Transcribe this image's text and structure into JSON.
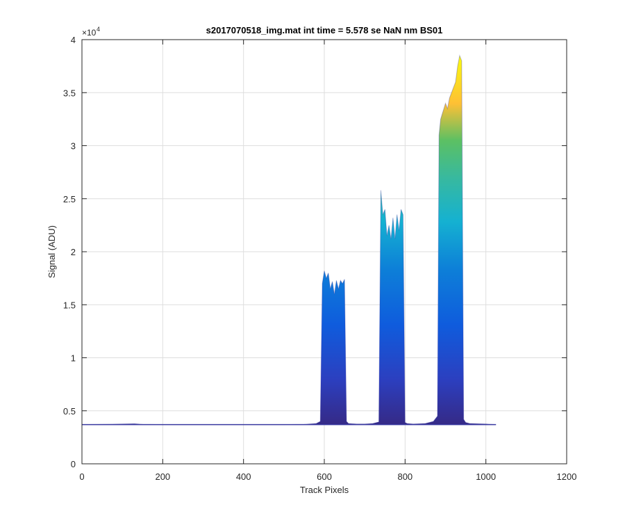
{
  "chart_data": {
    "type": "area",
    "title": "s2017070518_img.mat int time = 5.578 se  NaN nm BS01",
    "xlabel": "Track Pixels",
    "ylabel": "Signal (ADU)",
    "xlim": [
      0,
      1200
    ],
    "ylim": [
      0,
      40000
    ],
    "x_ticks": [
      0,
      200,
      400,
      600,
      800,
      1000,
      1200
    ],
    "x_tick_labels": [
      "0",
      "200",
      "400",
      "600",
      "800",
      "1000",
      "1200"
    ],
    "y_ticks": [
      0,
      5000,
      10000,
      15000,
      20000,
      25000,
      30000,
      35000,
      40000
    ],
    "y_tick_labels": [
      "0",
      "0.5",
      "1",
      "1.5",
      "2",
      "2.5",
      "3",
      "3.5",
      "4"
    ],
    "y_exponent_base": "×10",
    "y_exponent_power": "4",
    "grid": true,
    "colormap": "parula",
    "colors": {
      "low": "#352a87",
      "mid_blue": "#0f5cdd",
      "cyan": "#15b1d1",
      "green": "#5cc063",
      "yellow": "#f9fb0e",
      "orange": "#fec035",
      "baseline": "#3a3aa0",
      "grid": "#dedede",
      "axes": "#262626"
    },
    "series": [
      {
        "x": [
          0,
          50,
          100,
          130,
          150,
          200,
          300,
          400,
          500,
          550,
          580,
          590,
          595,
          600,
          605,
          610,
          615,
          620,
          625,
          630,
          635,
          640,
          645,
          650,
          655,
          660,
          680,
          700,
          720,
          735,
          740,
          745,
          750,
          755,
          760,
          765,
          770,
          775,
          780,
          785,
          790,
          795,
          800,
          805,
          820,
          850,
          870,
          880,
          884,
          888,
          892,
          896,
          900,
          905,
          910,
          915,
          920,
          925,
          930,
          935,
          940,
          945,
          950,
          960,
          1000,
          1025
        ],
        "y": [
          3700,
          3720,
          3750,
          3780,
          3720,
          3700,
          3700,
          3700,
          3700,
          3720,
          3800,
          4000,
          17000,
          18200,
          17500,
          18000,
          16500,
          17200,
          16000,
          17300,
          16500,
          17300,
          17000,
          17400,
          4000,
          3800,
          3750,
          3750,
          3800,
          3950,
          25800,
          23500,
          24000,
          21500,
          22500,
          21200,
          23200,
          21200,
          23500,
          22000,
          24000,
          23500,
          3900,
          3800,
          3750,
          3800,
          4000,
          4500,
          31000,
          32500,
          33000,
          33500,
          34000,
          33500,
          34500,
          35000,
          35500,
          36000,
          37500,
          38500,
          38000,
          4200,
          3900,
          3800,
          3750,
          3700
        ]
      }
    ]
  }
}
